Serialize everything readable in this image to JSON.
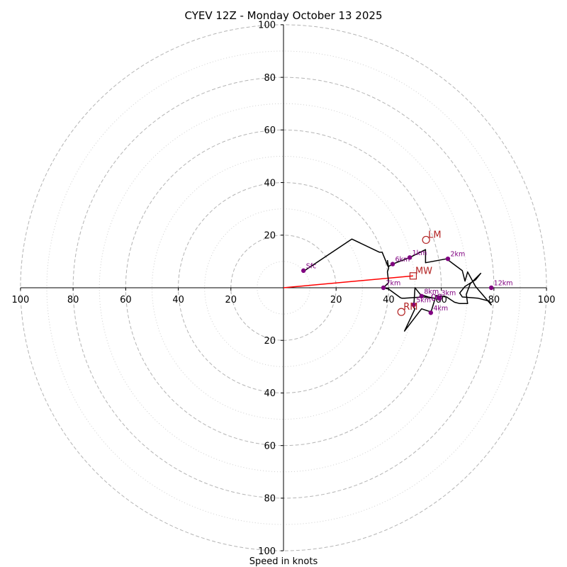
{
  "chart_data": {
    "type": "scatter",
    "title": "CYEV 12Z - Monday October 13 2025",
    "xlabel": "Speed in knots",
    "ylabel": "",
    "xlim": [
      -100,
      100
    ],
    "ylim": [
      -100,
      100
    ],
    "solid_rings": [
      20,
      40,
      60,
      80,
      100
    ],
    "dotted_rings": [
      10,
      30,
      50,
      70,
      90
    ],
    "axis_ticks": {
      "x_left": [
        "100",
        "80",
        "60",
        "40",
        "20"
      ],
      "x_right": [
        "20",
        "40",
        "60",
        "80",
        "100"
      ],
      "y_up": [
        "20",
        "40",
        "60",
        "80",
        "100"
      ],
      "y_down": [
        "20",
        "40",
        "60",
        "80",
        "100"
      ]
    },
    "colors": {
      "hodograph": "#000000",
      "heights": "#800080",
      "motion": "#b22222",
      "mean_wind_line": "#ff0000",
      "rings": "#b4b4b4"
    },
    "hodograph_trace": [
      [
        8,
        6.5
      ],
      [
        26,
        18.5
      ],
      [
        36.5,
        13.5
      ],
      [
        37.5,
        13.5
      ],
      [
        39.8,
        8
      ],
      [
        41.5,
        9
      ],
      [
        48,
        11.5
      ],
      [
        54,
        14.5
      ],
      [
        54,
        9.5
      ],
      [
        62,
        11
      ],
      [
        68,
        6.5
      ],
      [
        69,
        2.5
      ],
      [
        70,
        6
      ],
      [
        73,
        0.5
      ],
      [
        79,
        -6.5
      ],
      [
        78,
        -5
      ],
      [
        74,
        -4
      ],
      [
        68,
        -3.5
      ],
      [
        67,
        -2
      ],
      [
        69,
        0.5
      ],
      [
        73,
        3
      ],
      [
        75,
        5.5
      ],
      [
        71,
        1.5
      ],
      [
        69.5,
        -2.5
      ],
      [
        70,
        -6
      ],
      [
        67,
        -6
      ],
      [
        65,
        -5.5
      ],
      [
        62,
        -3.5
      ],
      [
        58,
        -3
      ],
      [
        56,
        -9.5
      ],
      [
        55.5,
        -9
      ],
      [
        52.5,
        -8
      ],
      [
        46,
        -16.5
      ],
      [
        50,
        -8
      ],
      [
        49.5,
        -7.5
      ],
      [
        50,
        0
      ],
      [
        52,
        -2.5
      ],
      [
        55,
        -3.5
      ],
      [
        57.5,
        -4
      ],
      [
        53,
        -3.5
      ],
      [
        46,
        -4
      ],
      [
        45,
        -4
      ],
      [
        44.5,
        -3.8
      ],
      [
        42,
        -2
      ],
      [
        40,
        -0.5
      ],
      [
        38,
        0
      ],
      [
        40,
        2
      ],
      [
        39.5,
        6
      ],
      [
        40,
        7.5
      ],
      [
        39.5,
        10.5
      ]
    ],
    "height_markers": [
      {
        "label": "Sfc",
        "u": 7.6,
        "v": 6.5
      },
      {
        "label": "1km",
        "u": 48,
        "v": 11.5
      },
      {
        "label": "2km",
        "u": 62.5,
        "v": 11
      },
      {
        "label": "3km",
        "u": 59,
        "v": -3.8
      },
      {
        "label": "4km",
        "u": 56,
        "v": -9.5
      },
      {
        "label": "5km",
        "u": 49.5,
        "v": -6.5
      },
      {
        "label": "6km",
        "u": 41.5,
        "v": 9
      },
      {
        "label": "7km",
        "u": 38,
        "v": 0
      },
      {
        "label": "8km",
        "u": 52.5,
        "v": -3.2
      },
      {
        "label": "12km",
        "u": 79,
        "v": 0
      }
    ],
    "storm_motion": [
      {
        "label": "LM",
        "u": 54.2,
        "v": 18.2,
        "symbol": "circle"
      },
      {
        "label": "RM",
        "u": 44.8,
        "v": -9.2,
        "symbol": "circle"
      },
      {
        "label": "MW",
        "u": 49.3,
        "v": 4.5,
        "symbol": "square"
      }
    ],
    "extra_labels": [
      {
        "text": "00",
        "u": 58.2,
        "v": -4.1
      }
    ],
    "mean_wind_line": {
      "from": [
        0,
        0
      ],
      "to": [
        49.3,
        4.5
      ]
    }
  }
}
